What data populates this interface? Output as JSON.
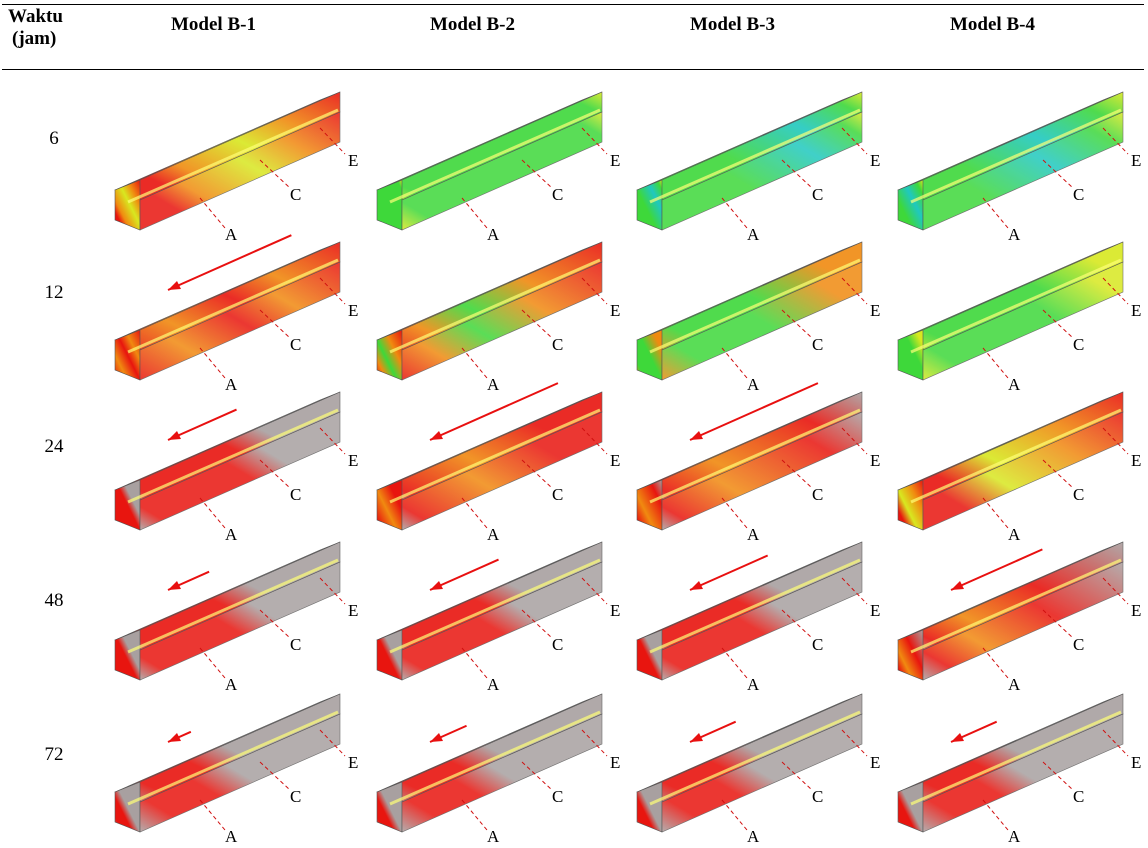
{
  "header": {
    "time_label_line1": "Waktu",
    "time_label_line2": "(jam)",
    "models": [
      "Model B-1",
      "Model B-2",
      "Model B-3",
      "Model B-4"
    ]
  },
  "rows": [
    {
      "time": "6",
      "cells": [
        {
          "scheme": "mixed6",
          "arrow": 0
        },
        {
          "scheme": "green6",
          "arrow": 0
        },
        {
          "scheme": "green6b",
          "arrow": 0
        },
        {
          "scheme": "cyan6",
          "arrow": 0
        }
      ]
    },
    {
      "time": "12",
      "cells": [
        {
          "scheme": "red12",
          "arrow": 135
        },
        {
          "scheme": "orange12",
          "arrow": 0
        },
        {
          "scheme": "green12",
          "arrow": 0
        },
        {
          "scheme": "green12b",
          "arrow": 0
        }
      ]
    },
    {
      "time": "24",
      "cells": [
        {
          "scheme": "red24",
          "arrow": 75
        },
        {
          "scheme": "red24b",
          "arrow": 140
        },
        {
          "scheme": "red24c",
          "arrow": 140
        },
        {
          "scheme": "orange24",
          "arrow": 0
        }
      ]
    },
    {
      "time": "48",
      "cells": [
        {
          "scheme": "red48",
          "arrow": 45
        },
        {
          "scheme": "red48",
          "arrow": 75
        },
        {
          "scheme": "red48",
          "arrow": 85
        },
        {
          "scheme": "red48b",
          "arrow": 100
        }
      ]
    },
    {
      "time": "72",
      "cells": [
        {
          "scheme": "red72",
          "arrow": 25
        },
        {
          "scheme": "red72",
          "arrow": 40
        },
        {
          "scheme": "red72",
          "arrow": 50
        },
        {
          "scheme": "red72",
          "arrow": 50
        }
      ]
    }
  ],
  "section_labels": [
    "A",
    "C",
    "E"
  ],
  "colors": {
    "red": "#e8150f",
    "orange": "#f08a10",
    "yellow": "#d8e820",
    "green": "#3ed83a",
    "cyan": "#20c8c0",
    "grey": "#a8a0a0",
    "arrow": "#e81010"
  }
}
